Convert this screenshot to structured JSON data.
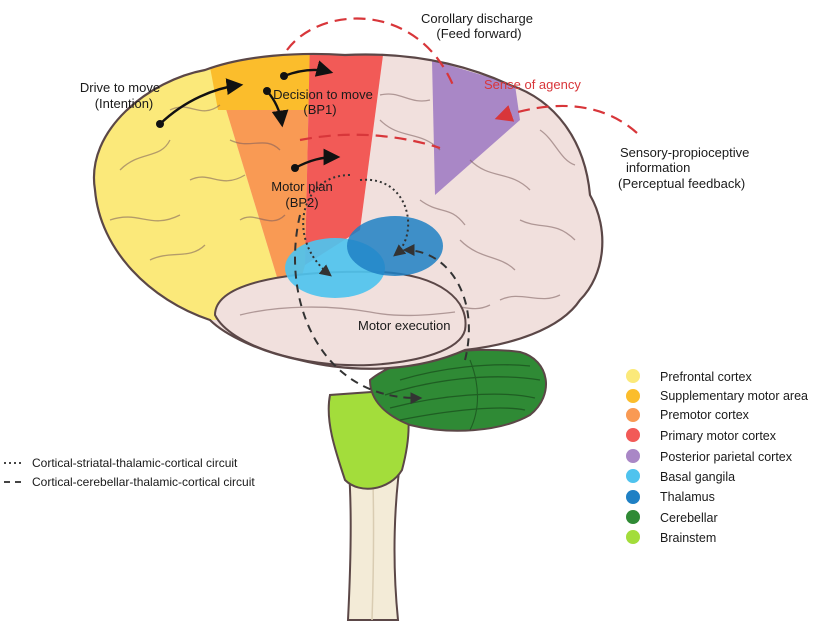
{
  "colors": {
    "prefrontal": "#fbe97a",
    "sma": "#fbbd2c",
    "premotor": "#f99a54",
    "primary_motor": "#f25a57",
    "posterior_parietal": "#a987c6",
    "basal_ganglia": "#4fc3ee",
    "thalamus": "#1f80c4",
    "cerebellar": "#2f8a35",
    "brainstem": "#a3dd3b",
    "brain_body": "#f1e0dd",
    "brain_outline": "#5b4747",
    "spinal": "#f3ebd7",
    "accent_red": "#d8363a"
  },
  "labels": {
    "drive": [
      "Drive to move",
      "(Intention)"
    ],
    "decision": [
      "Decision to move",
      "(BP1)"
    ],
    "motor_plan": [
      "Motor plan",
      "(BP2)"
    ],
    "corollary": [
      "Corollary discharge",
      "(Feed forward)"
    ],
    "agency": "Sense of agency",
    "sensory": [
      "Sensory-propioceptive",
      "information",
      "(Perceptual feedback)"
    ],
    "motor_execution": "Motor execution"
  },
  "legend": [
    {
      "label": "Prefrontal cortex",
      "color": "#fbe97a"
    },
    {
      "label": "Supplementary motor area",
      "color": "#fbbd2c"
    },
    {
      "label": "Premotor cortex",
      "color": "#f99a54"
    },
    {
      "label": "Primary motor cortex",
      "color": "#f25a57"
    },
    {
      "label": "Posterior parietal cortex",
      "color": "#a987c6"
    },
    {
      "label": "Basal gangila",
      "color": "#4fc3ee"
    },
    {
      "label": "Thalamus",
      "color": "#1f80c4"
    },
    {
      "label": "Cerebellar",
      "color": "#2f8a35"
    },
    {
      "label": "Brainstem",
      "color": "#a3dd3b"
    }
  ],
  "circuits": [
    {
      "label": "Cortical-striatal-thalamic-cortical circuit",
      "style": "dotted"
    },
    {
      "label": "Cortical-cerebellar-thalamic-cortical circuit",
      "style": "dashed"
    }
  ]
}
